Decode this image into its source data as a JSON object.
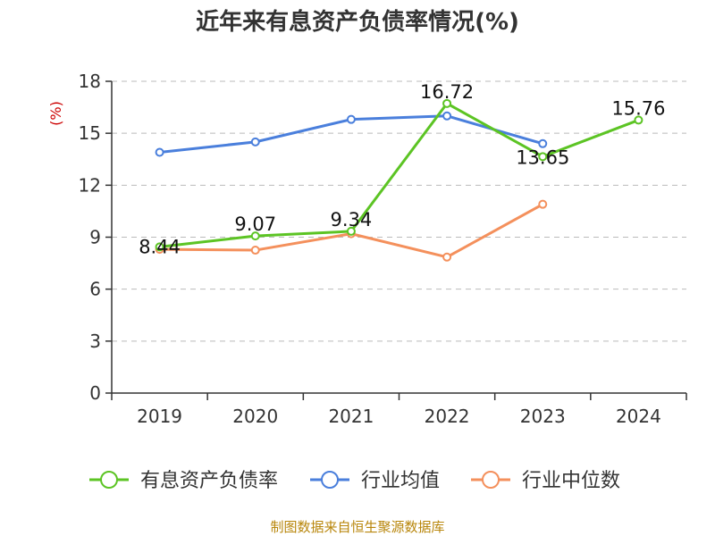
{
  "chart_data": {
    "type": "line",
    "title": "近年来有息资产负债率情况(%)",
    "ylabel": "(%)",
    "categories": [
      "2019",
      "2020",
      "2021",
      "2022",
      "2023",
      "2024"
    ],
    "ylim": [
      0,
      18
    ],
    "yticks": [
      0,
      3,
      6,
      9,
      12,
      15,
      18
    ],
    "grid": true,
    "legend_position": "bottom",
    "series": [
      {
        "name": "有息资产负债率",
        "color": "#5cc424",
        "values": [
          8.44,
          9.07,
          9.34,
          16.72,
          13.65,
          15.76
        ],
        "labels": [
          "8.44",
          "9.07",
          "9.34",
          "16.72",
          "13.65",
          "15.76"
        ]
      },
      {
        "name": "行业均值",
        "color": "#4a7fdc",
        "values": [
          13.9,
          14.5,
          15.8,
          16.0,
          14.4,
          null
        ]
      },
      {
        "name": "行业中位数",
        "color": "#f4905c",
        "values": [
          8.3,
          8.25,
          9.2,
          7.85,
          10.9,
          null
        ]
      }
    ]
  },
  "footer": {
    "source": "制图数据来自恒生聚源数据库"
  }
}
